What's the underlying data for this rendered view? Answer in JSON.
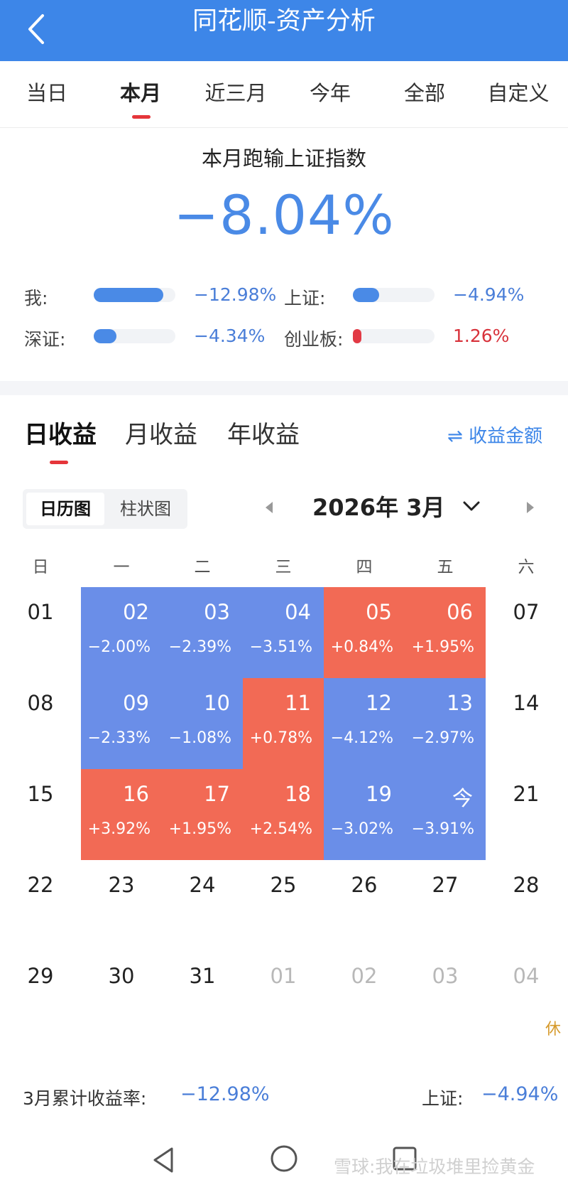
{
  "header": {
    "title": "同花顺-资产分析",
    "back_icon": "chevron-left-icon"
  },
  "range_tabs": [
    {
      "label": "当日"
    },
    {
      "label": "本月",
      "active": true
    },
    {
      "label": "近三月"
    },
    {
      "label": "今年"
    },
    {
      "label": "全部"
    },
    {
      "label": "自定义"
    }
  ],
  "summary": {
    "title": "本月跑输上证指数",
    "value": "−8.04%"
  },
  "comparisons": [
    {
      "label": "我:",
      "value": "−12.98%",
      "fill": 0.85,
      "sign": "neg"
    },
    {
      "label": "上证:",
      "value": "−4.94%",
      "fill": 0.32,
      "sign": "neg"
    },
    {
      "label": "深证:",
      "value": "−4.34%",
      "fill": 0.28,
      "sign": "neg"
    },
    {
      "label": "创业板:",
      "value": "1.26%",
      "fill": 0.08,
      "sign": "pos"
    }
  ],
  "period_tabs": [
    {
      "label": "日收益",
      "active": true
    },
    {
      "label": "月收益"
    },
    {
      "label": "年收益"
    }
  ],
  "amount_toggle": {
    "icon": "swap-icon",
    "label": "收益金额"
  },
  "view_switch": {
    "calendar": "日历图",
    "bar": "柱状图"
  },
  "month_picker": {
    "label": "2026年 3月"
  },
  "weekdays": [
    "日",
    "一",
    "二",
    "三",
    "四",
    "五",
    "六"
  ],
  "calendar_rows": [
    [
      {
        "day": "01"
      },
      {
        "day": "02",
        "pct": "−2.00%",
        "type": "neg"
      },
      {
        "day": "03",
        "pct": "−2.39%",
        "type": "neg"
      },
      {
        "day": "04",
        "pct": "−3.51%",
        "type": "neg"
      },
      {
        "day": "05",
        "pct": "+0.84%",
        "type": "pos"
      },
      {
        "day": "06",
        "pct": "+1.95%",
        "type": "pos"
      },
      {
        "day": "07"
      }
    ],
    [
      {
        "day": "08"
      },
      {
        "day": "09",
        "pct": "−2.33%",
        "type": "neg"
      },
      {
        "day": "10",
        "pct": "−1.08%",
        "type": "neg"
      },
      {
        "day": "11",
        "pct": "+0.78%",
        "type": "pos"
      },
      {
        "day": "12",
        "pct": "−4.12%",
        "type": "neg"
      },
      {
        "day": "13",
        "pct": "−2.97%",
        "type": "neg"
      },
      {
        "day": "14"
      }
    ],
    [
      {
        "day": "15"
      },
      {
        "day": "16",
        "pct": "+3.92%",
        "type": "pos"
      },
      {
        "day": "17",
        "pct": "+1.95%",
        "type": "pos"
      },
      {
        "day": "18",
        "pct": "+2.54%",
        "type": "pos"
      },
      {
        "day": "19",
        "pct": "−3.02%",
        "type": "neg"
      },
      {
        "day": "今",
        "pct": "−3.91%",
        "type": "neg"
      },
      {
        "day": "21"
      }
    ],
    [
      {
        "day": "22"
      },
      {
        "day": "23"
      },
      {
        "day": "24"
      },
      {
        "day": "25"
      },
      {
        "day": "26"
      },
      {
        "day": "27"
      },
      {
        "day": "28"
      }
    ],
    [
      {
        "day": "29"
      },
      {
        "day": "30"
      },
      {
        "day": "31"
      },
      {
        "day": "01",
        "other": true
      },
      {
        "day": "02",
        "other": true
      },
      {
        "day": "03",
        "other": true
      },
      {
        "day": "04",
        "other": true,
        "holiday": "休"
      }
    ]
  ],
  "footer": {
    "cumulative_label": "3月累计收益率:",
    "cumulative_value": "−12.98%",
    "index_label": "上证:",
    "index_value": "−4.94%"
  },
  "watermark": "雪球:我在垃圾堆里捡黄金",
  "colors": {
    "header": "#3d86e8",
    "negative": "#6a8ee8",
    "positive": "#f26a55",
    "accent_red": "#e5353a"
  }
}
